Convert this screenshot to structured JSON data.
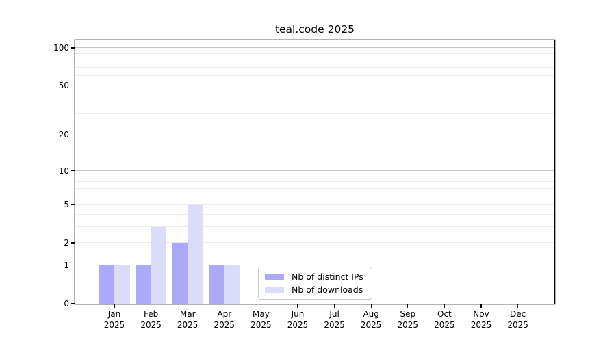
{
  "chart_data": {
    "type": "bar",
    "title": "teal.code 2025",
    "categories": [
      "Jan 2025",
      "Feb 2025",
      "Mar 2025",
      "Apr 2025",
      "May 2025",
      "Jun 2025",
      "Jul 2025",
      "Aug 2025",
      "Sep 2025",
      "Oct 2025",
      "Nov 2025",
      "Dec 2025"
    ],
    "category_line1": [
      "Jan",
      "Feb",
      "Mar",
      "Apr",
      "May",
      "Jun",
      "Jul",
      "Aug",
      "Sep",
      "Oct",
      "Nov",
      "Dec"
    ],
    "category_line2": "2025",
    "series": [
      {
        "name": "Nb of distinct IPs",
        "color": "#aaaaf8",
        "values": [
          1,
          1,
          2,
          1,
          0,
          0,
          0,
          0,
          0,
          0,
          0,
          0
        ]
      },
      {
        "name": "Nb of downloads",
        "color": "#dbdbfa",
        "values": [
          1,
          3,
          5,
          1,
          0,
          0,
          0,
          0,
          0,
          0,
          0,
          0
        ]
      }
    ],
    "xlabel": "",
    "ylabel": "",
    "y_scale": "log1p",
    "ylim": [
      0,
      115
    ],
    "y_ticks": [
      0,
      1,
      2,
      5,
      10,
      20,
      50,
      100
    ],
    "y_major_gridlines": [
      1,
      10,
      100
    ],
    "y_minor_gridlines": [
      2,
      3,
      4,
      5,
      6,
      7,
      8,
      9,
      20,
      30,
      40,
      50,
      60,
      70,
      80,
      90
    ],
    "grid": "horizontal",
    "legend_position": "lower center",
    "colors": {
      "axis": "#000000",
      "major_grid": "#c6c6c6",
      "minor_grid": "#ebebeb",
      "legend_border": "#cccccc"
    }
  }
}
